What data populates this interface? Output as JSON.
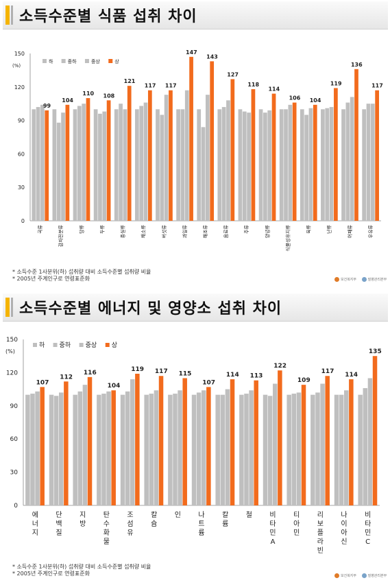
{
  "panels": [
    {
      "title": "소득수준별 식품 섭취 차이",
      "footnotes": [
        "* 소득수준 1사분위(하) 섭취량 대비 소득수준별 섭취량 비율",
        "* 2005년 주계인구로 연령표준화"
      ],
      "logos": [
        "보건복지부",
        "질병관리본부"
      ]
    },
    {
      "title": "소득수준별 에너지 및 영양소 섭취 차이",
      "footnotes": [
        "* 소득수준 1사분위(하) 섭취량 대비 소득수준별 섭취량 비율",
        "* 2005년 주계인구로 연령표준화"
      ],
      "logos": [
        "보건복지부",
        "질병관리본부"
      ]
    }
  ],
  "chart_data": [
    {
      "type": "bar",
      "ylabel": "(%)",
      "ylim": [
        0,
        150
      ],
      "yticks": [
        0,
        30,
        60,
        90,
        120,
        150
      ],
      "legend": "top-left",
      "categories": [
        "곡류",
        "감자전분류",
        "당류",
        "두류",
        "종실류",
        "채소류",
        "버섯류",
        "과일류",
        "해조류",
        "음료류",
        "주류",
        "양념류",
        "식물성유지류",
        "육류",
        "난류",
        "어패류",
        "우유류"
      ],
      "series": [
        {
          "name": "하",
          "color": "#bfbfbf",
          "values": [
            100,
            100,
            100,
            100,
            100,
            100,
            100,
            100,
            100,
            100,
            100,
            100,
            100,
            100,
            100,
            100,
            100
          ]
        },
        {
          "name": "중하",
          "color": "#bfbfbf",
          "values": [
            102,
            88,
            103,
            96,
            105,
            103,
            95,
            100,
            84,
            102,
            98,
            97,
            100,
            95,
            101,
            106,
            105
          ]
        },
        {
          "name": "중상",
          "color": "#bfbfbf",
          "values": [
            104,
            97,
            105,
            98,
            100,
            106,
            113,
            117,
            113,
            108,
            97,
            99,
            104,
            101,
            102,
            111,
            105
          ]
        },
        {
          "name": "상",
          "color": "#f26b1d",
          "values": [
            99,
            104,
            110,
            108,
            121,
            117,
            117,
            147,
            143,
            127,
            118,
            114,
            106,
            104,
            119,
            136,
            117
          ]
        }
      ],
      "data_labels": [
        "99",
        "104",
        "110",
        "108",
        "121",
        "117",
        "117",
        "147",
        "143",
        "127",
        "118",
        "114",
        "106",
        "104",
        "119",
        "136",
        "117"
      ]
    },
    {
      "type": "bar",
      "ylabel": "(%)",
      "ylim": [
        0,
        150
      ],
      "yticks": [
        0,
        30,
        60,
        90,
        120,
        150
      ],
      "legend": "top-left",
      "categories": [
        "에너지",
        "단백질",
        "지방",
        "탄수화물",
        "조섬유",
        "칼슘",
        "인",
        "나트륨",
        "칼륨",
        "철",
        "비타민A",
        "티아민",
        "리보플라빈",
        "나이아신",
        "비타민C"
      ],
      "series": [
        {
          "name": "하",
          "color": "#bfbfbf",
          "values": [
            100,
            100,
            100,
            100,
            100,
            100,
            100,
            100,
            100,
            100,
            100,
            100,
            100,
            100,
            100
          ]
        },
        {
          "name": "중하",
          "color": "#bfbfbf",
          "values": [
            101,
            99,
            103,
            101,
            103,
            101,
            101,
            102,
            100,
            101,
            99,
            101,
            102,
            100,
            106
          ]
        },
        {
          "name": "중상",
          "color": "#bfbfbf",
          "values": [
            103,
            102,
            109,
            103,
            114,
            104,
            104,
            104,
            105,
            104,
            110,
            102,
            110,
            104,
            115
          ]
        },
        {
          "name": "상",
          "color": "#f26b1d",
          "values": [
            107,
            112,
            116,
            104,
            119,
            117,
            115,
            107,
            114,
            113,
            122,
            109,
            117,
            114,
            135
          ]
        }
      ],
      "data_labels": [
        "107",
        "112",
        "116",
        "104",
        "119",
        "117",
        "115",
        "107",
        "114",
        "113",
        "122",
        "109",
        "117",
        "114",
        "135"
      ]
    }
  ]
}
